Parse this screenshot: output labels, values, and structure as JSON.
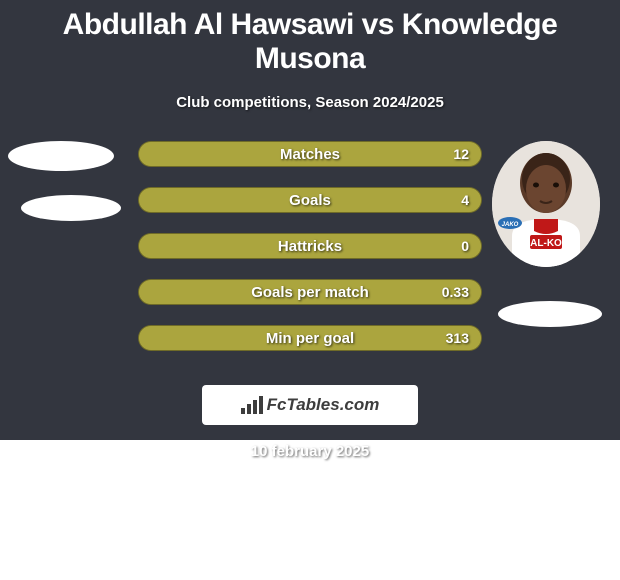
{
  "title": "Abdullah Al Hawsawi vs Knowledge Musona",
  "subtitle": "Club competitions, Season 2024/2025",
  "footer_date": "10 february 2025",
  "brand_text": "FcTables.com",
  "colors": {
    "card_bg": "#33363f",
    "bar_left": "#aba53e",
    "bar_right": "#aba53e",
    "ellipse": "#ffffff",
    "text": "#ffffff"
  },
  "bars": [
    {
      "label": "Matches",
      "right_value": "12",
      "right_pct": 100
    },
    {
      "label": "Goals",
      "right_value": "4",
      "right_pct": 100
    },
    {
      "label": "Hattricks",
      "right_value": "0",
      "right_pct": 100
    },
    {
      "label": "Goals per match",
      "right_value": "0.33",
      "right_pct": 100
    },
    {
      "label": "Min per goal",
      "right_value": "313",
      "right_pct": 100
    }
  ]
}
